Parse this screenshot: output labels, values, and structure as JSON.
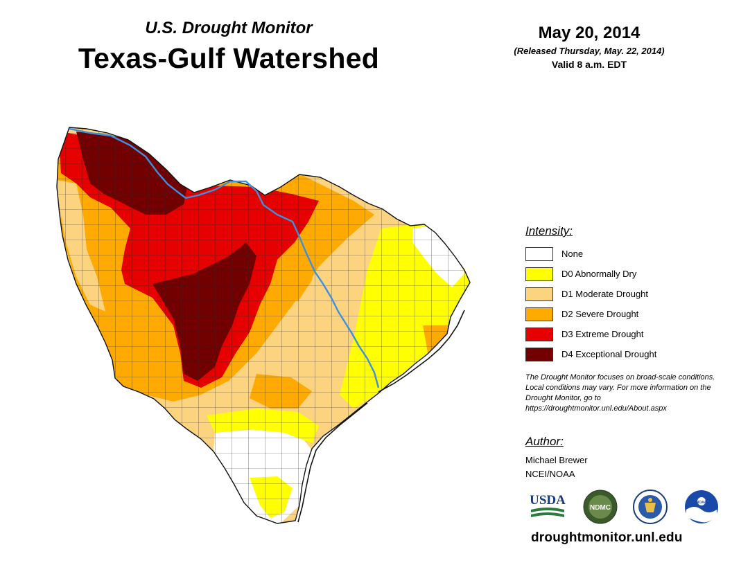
{
  "header": {
    "subtitle": "U.S. Drought Monitor",
    "title": "Texas-Gulf Watershed"
  },
  "date_info": {
    "date": "May 20, 2014",
    "released": "(Released Thursday, May. 22, 2014)",
    "valid": "Valid 8 a.m. EDT"
  },
  "legend": {
    "heading": "Intensity:",
    "items": [
      {
        "label": "None",
        "color": "#ffffff"
      },
      {
        "label": "D0 Abnormally Dry",
        "color": "#ffff00"
      },
      {
        "label": "D1 Moderate Drought",
        "color": "#fcd37f"
      },
      {
        "label": "D2 Severe Drought",
        "color": "#ffaa00"
      },
      {
        "label": "D3 Extreme Drought",
        "color": "#e60000"
      },
      {
        "label": "D4 Exceptional Drought",
        "color": "#730000"
      }
    ]
  },
  "disclaimer": "The Drought Monitor focuses on broad-scale conditions. Local conditions may vary. For more information on the Drought Monitor, go to https://droughtmonitor.unl.edu/About.aspx",
  "author": {
    "heading": "Author:",
    "name": "Michael Brewer",
    "org": "NCEI/NOAA"
  },
  "logos": {
    "usda": "USDA",
    "ndmc": "NDMC",
    "noaa": "NOAA"
  },
  "footer": {
    "url": "droughtmonitor.unl.edu"
  },
  "colors": {
    "river": "#3d8fe0",
    "county_lines": "#222222"
  }
}
